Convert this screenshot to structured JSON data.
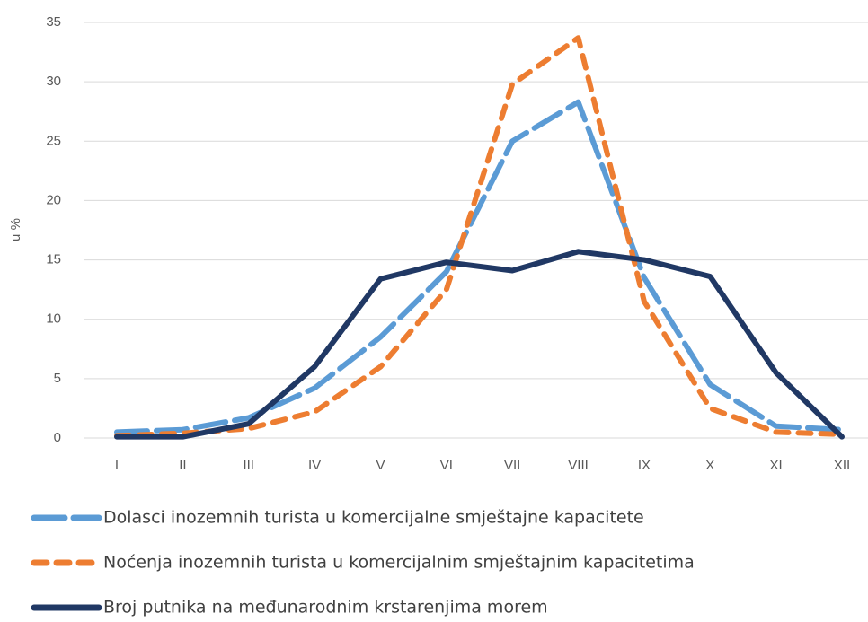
{
  "chart_data": {
    "type": "line",
    "y_label": "u %",
    "categories": [
      "I",
      "II",
      "III",
      "IV",
      "V",
      "VI",
      "VII",
      "VIII",
      "IX",
      "X",
      "XI",
      "XII"
    ],
    "series": [
      {
        "name": "Dolasci inozemnih turista u komercijalne smještajne kapacitete",
        "color": "#5b9bd5",
        "style": "long-dash",
        "values": [
          0.5,
          0.7,
          1.7,
          4.2,
          8.5,
          14,
          25,
          28.3,
          13.5,
          4.5,
          1,
          0.7
        ]
      },
      {
        "name": "Noćenja inozemnih turista u komercijalnim smještajnim kapacitetima",
        "color": "#ed7d31",
        "style": "dash",
        "values": [
          0.2,
          0.4,
          0.8,
          2.2,
          6,
          12.5,
          29.8,
          33.7,
          11.5,
          2.5,
          0.5,
          0.3
        ]
      },
      {
        "name": "Broj putnika na međunarodnim krstarenjima morem",
        "color": "#203864",
        "style": "solid",
        "values": [
          0.1,
          0.1,
          1.2,
          6,
          13.4,
          14.8,
          14.1,
          15.7,
          15,
          13.6,
          5.5,
          0.1
        ]
      }
    ],
    "ylim": [
      0,
      35
    ],
    "yticks": [
      0,
      5,
      10,
      15,
      20,
      25,
      30,
      35
    ],
    "grid": true,
    "legend": "bottom"
  }
}
